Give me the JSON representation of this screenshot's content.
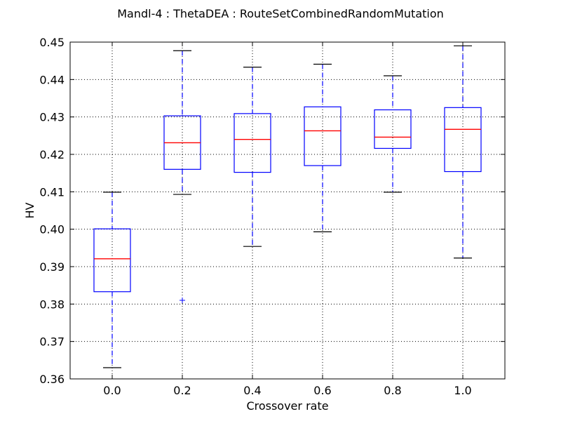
{
  "chart_data": {
    "type": "box",
    "title": "Mandl-4 : ThetaDEA : RouteSetCombinedRandomMutation",
    "xlabel": "Crossover rate",
    "ylabel": "HV",
    "ylim": [
      0.36,
      0.45
    ],
    "yticks": [
      "0.36",
      "0.37",
      "0.38",
      "0.39",
      "0.40",
      "0.41",
      "0.42",
      "0.43",
      "0.44",
      "0.45"
    ],
    "grid": true,
    "categories": [
      "0.0",
      "0.2",
      "0.4",
      "0.6",
      "0.8",
      "1.0"
    ],
    "boxes": [
      {
        "whisker_low": 0.363,
        "q1": 0.3833,
        "median": 0.3921,
        "q3": 0.4001,
        "whisker_high": 0.4099,
        "fliers": []
      },
      {
        "whisker_low": 0.4093,
        "q1": 0.416,
        "median": 0.4231,
        "q3": 0.4303,
        "whisker_high": 0.4477,
        "fliers": [
          0.381
        ]
      },
      {
        "whisker_low": 0.3954,
        "q1": 0.4152,
        "median": 0.424,
        "q3": 0.4309,
        "whisker_high": 0.4433,
        "fliers": []
      },
      {
        "whisker_low": 0.3993,
        "q1": 0.417,
        "median": 0.4263,
        "q3": 0.4327,
        "whisker_high": 0.4441,
        "fliers": []
      },
      {
        "whisker_low": 0.4099,
        "q1": 0.4216,
        "median": 0.4246,
        "q3": 0.4319,
        "whisker_high": 0.441,
        "fliers": []
      },
      {
        "whisker_low": 0.3923,
        "q1": 0.4154,
        "median": 0.4267,
        "q3": 0.4325,
        "whisker_high": 0.449,
        "fliers": []
      }
    ],
    "colors": {
      "box": "#0000ff",
      "median": "#ff0000",
      "cap": "#000000",
      "whisker": "#0000ff"
    }
  }
}
